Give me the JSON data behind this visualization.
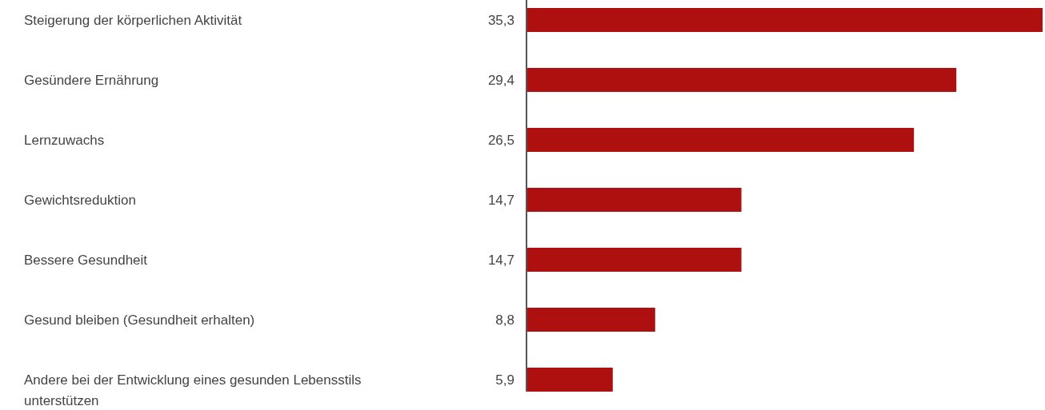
{
  "chart_data": {
    "type": "bar",
    "orientation": "horizontal",
    "categories": [
      "Steigerung der körperlichen Aktivität",
      "Gesündere Ernährung",
      "Lernzuwachs",
      "Gewichtsreduktion",
      "Bessere Gesundheit",
      "Gesund bleiben (Gesundheit erhalten)",
      "Andere bei der Entwicklung eines gesunden Lebensstils unterstützen"
    ],
    "values": [
      35.3,
      29.4,
      26.5,
      14.7,
      14.7,
      8.8,
      5.9
    ],
    "value_labels": [
      "35,3",
      "29,4",
      "26,5",
      "14,7",
      "14,7",
      "8,8",
      "5,9"
    ],
    "color": "#ae1010"
  }
}
